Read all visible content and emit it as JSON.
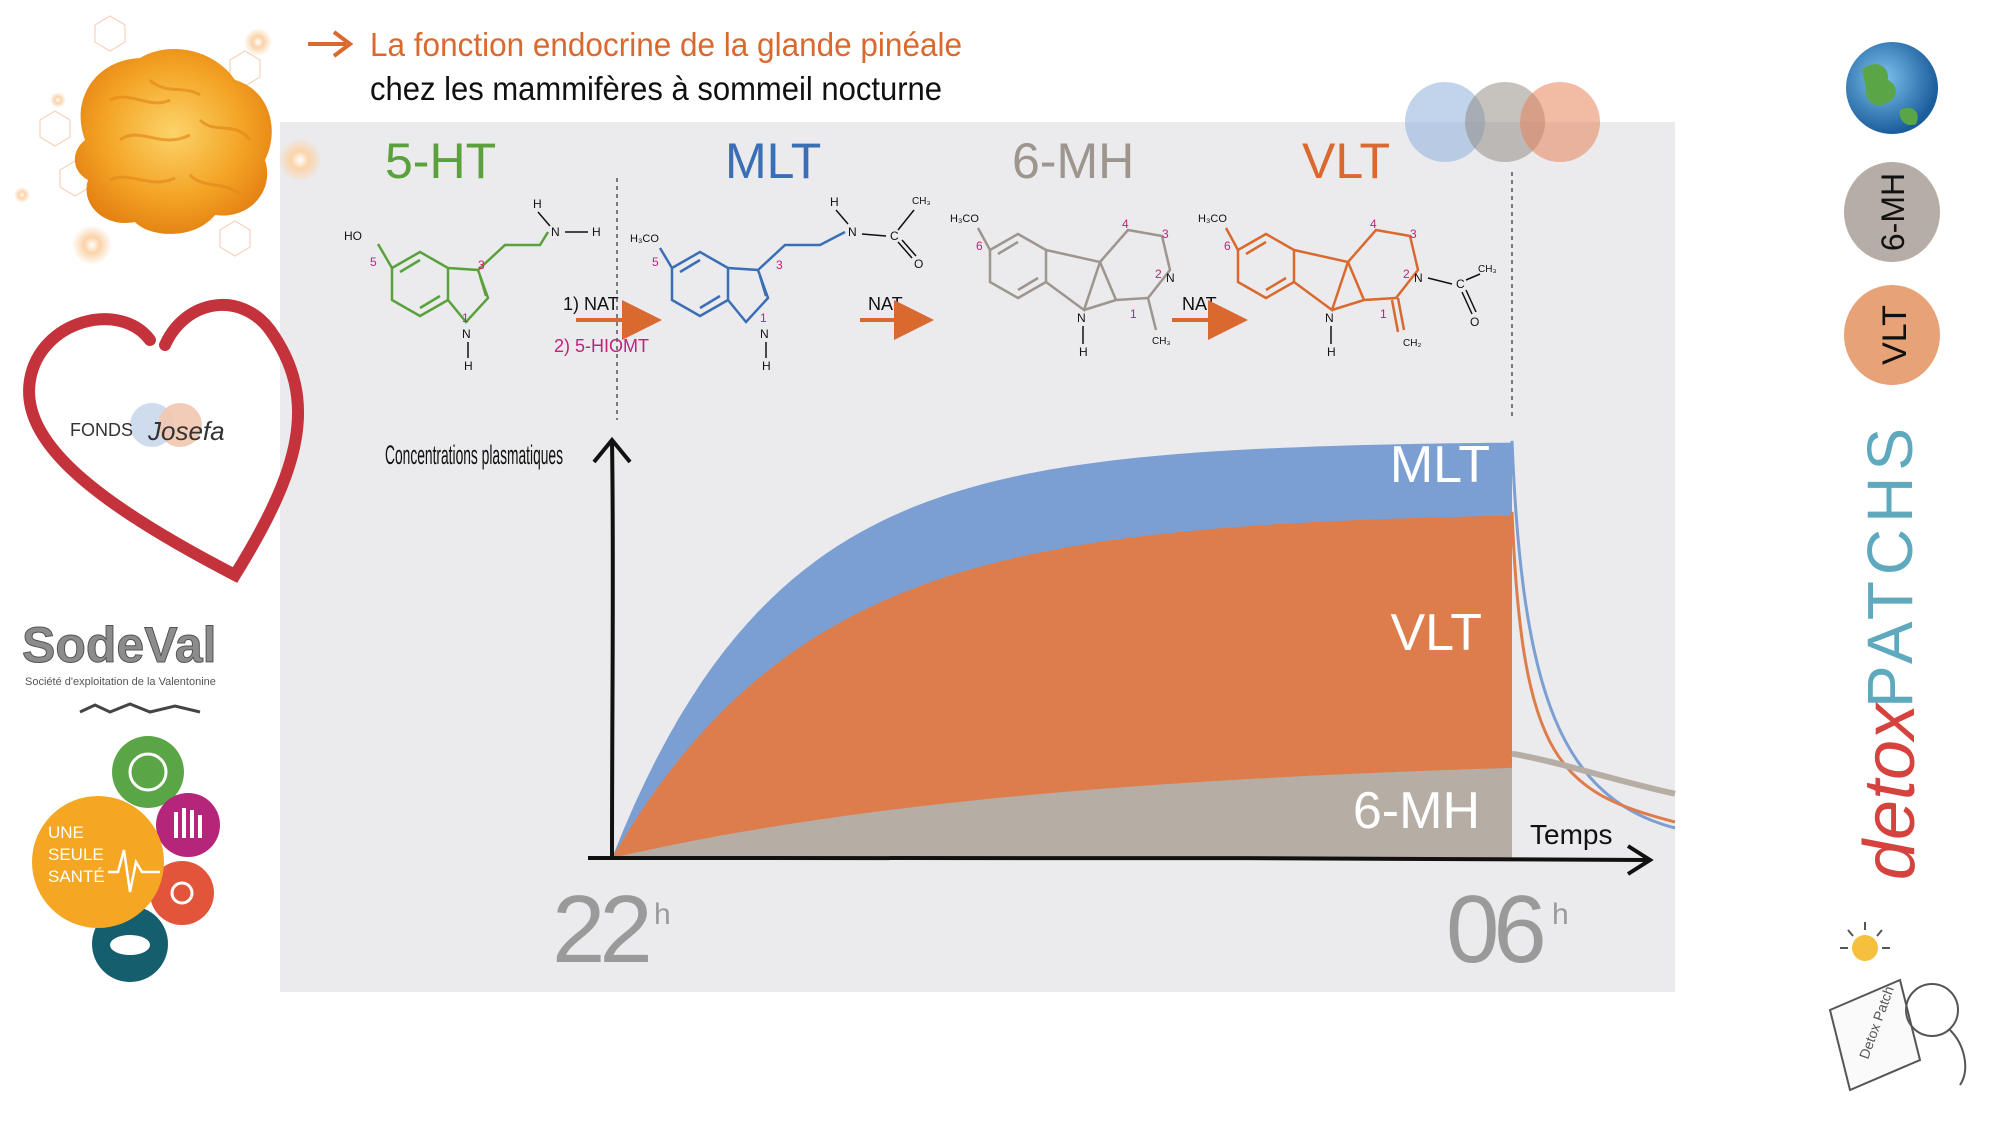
{
  "header": {
    "line1": "La fonction endocrine de la glande pinéale",
    "line2": "chez les mammifères à sommeil nocturne",
    "accent": "#d9692f"
  },
  "colors": {
    "green": "#5aa13c",
    "blue": "#3a6fb6",
    "grey": "#9d958e",
    "orange": "#d9692f",
    "magenta": "#c0237a",
    "panel": "#ebebed",
    "mlt_fill": "#7b9fd2",
    "vlt_fill": "#de7d4c",
    "mh_fill": "#b6ada4"
  },
  "molecules": {
    "serotonin": {
      "abbr": "5-HT",
      "ho": "HO",
      "n5": "5",
      "n3": "3",
      "n1": "1",
      "nh": "N",
      "h": "H",
      "amine_n": "N",
      "amine_h1": "H",
      "amine_h2": "H"
    },
    "melatonin": {
      "abbr": "MLT",
      "h3co": "H3CO",
      "n5": "5",
      "n3": "3",
      "n1": "1",
      "nh": "N",
      "h": "H",
      "amide_h": "H",
      "amide_n": "N",
      "c": "C",
      "ch3": "CH3",
      "o": "O"
    },
    "methoxyharmalan": {
      "abbr": "6-MH",
      "h3co": "H3CO",
      "n6": "6",
      "n4": "4",
      "n3": "3",
      "n2": "2",
      "n1": "1",
      "ring_n": "N",
      "nh": "N",
      "h": "H",
      "ch3": "CH3"
    },
    "valentonine": {
      "abbr": "VLT",
      "h3co": "H3CO",
      "n6": "6",
      "n4": "4",
      "n3": "3",
      "n2": "2",
      "n1": "1",
      "ring_n": "N",
      "nh": "N",
      "h": "H",
      "c": "C",
      "ch3": "CH3",
      "o": "O",
      "ch2": "CH2"
    }
  },
  "enzymes": {
    "step1_a": "1) NAT",
    "step1_b": "2) 5-HIOMT",
    "step2": "NAT",
    "step3": "NAT"
  },
  "chart_data": {
    "type": "area",
    "ylabel": "Concentrations plasmatiques",
    "xlabel": "Temps",
    "x_ticks": [
      "22",
      "06"
    ],
    "x_tick_suffix": "h",
    "note": "",
    "series": [
      {
        "name": "MLT",
        "plateau": 1.0,
        "rise_speed": 5.5,
        "color": "#7b9fd2"
      },
      {
        "name": "VLT",
        "plateau": 0.83,
        "rise_speed": 4.5,
        "color": "#de7d4c"
      },
      {
        "name": "6-MH",
        "plateau": 0.25,
        "rise_speed": 2.0,
        "color": "#b6ada4"
      }
    ],
    "x_range": [
      0,
      1
    ],
    "y_range": [
      0,
      1.05
    ],
    "grid": false
  },
  "logos": {
    "fonds": "FONDS",
    "fonds_script": "Josefa",
    "sodeval": "SodeVal",
    "sodeval_sub": "Société d'exploitation de la Valentonine",
    "one_health_1": "UNE",
    "one_health_2": "SEULE",
    "one_health_3": "SANTÉ",
    "detox": "detox",
    "patchs": "PATCHS",
    "badge_6mh": "6-MH",
    "badge_vlt": "VLT",
    "patch_box": "Detox Patch"
  }
}
